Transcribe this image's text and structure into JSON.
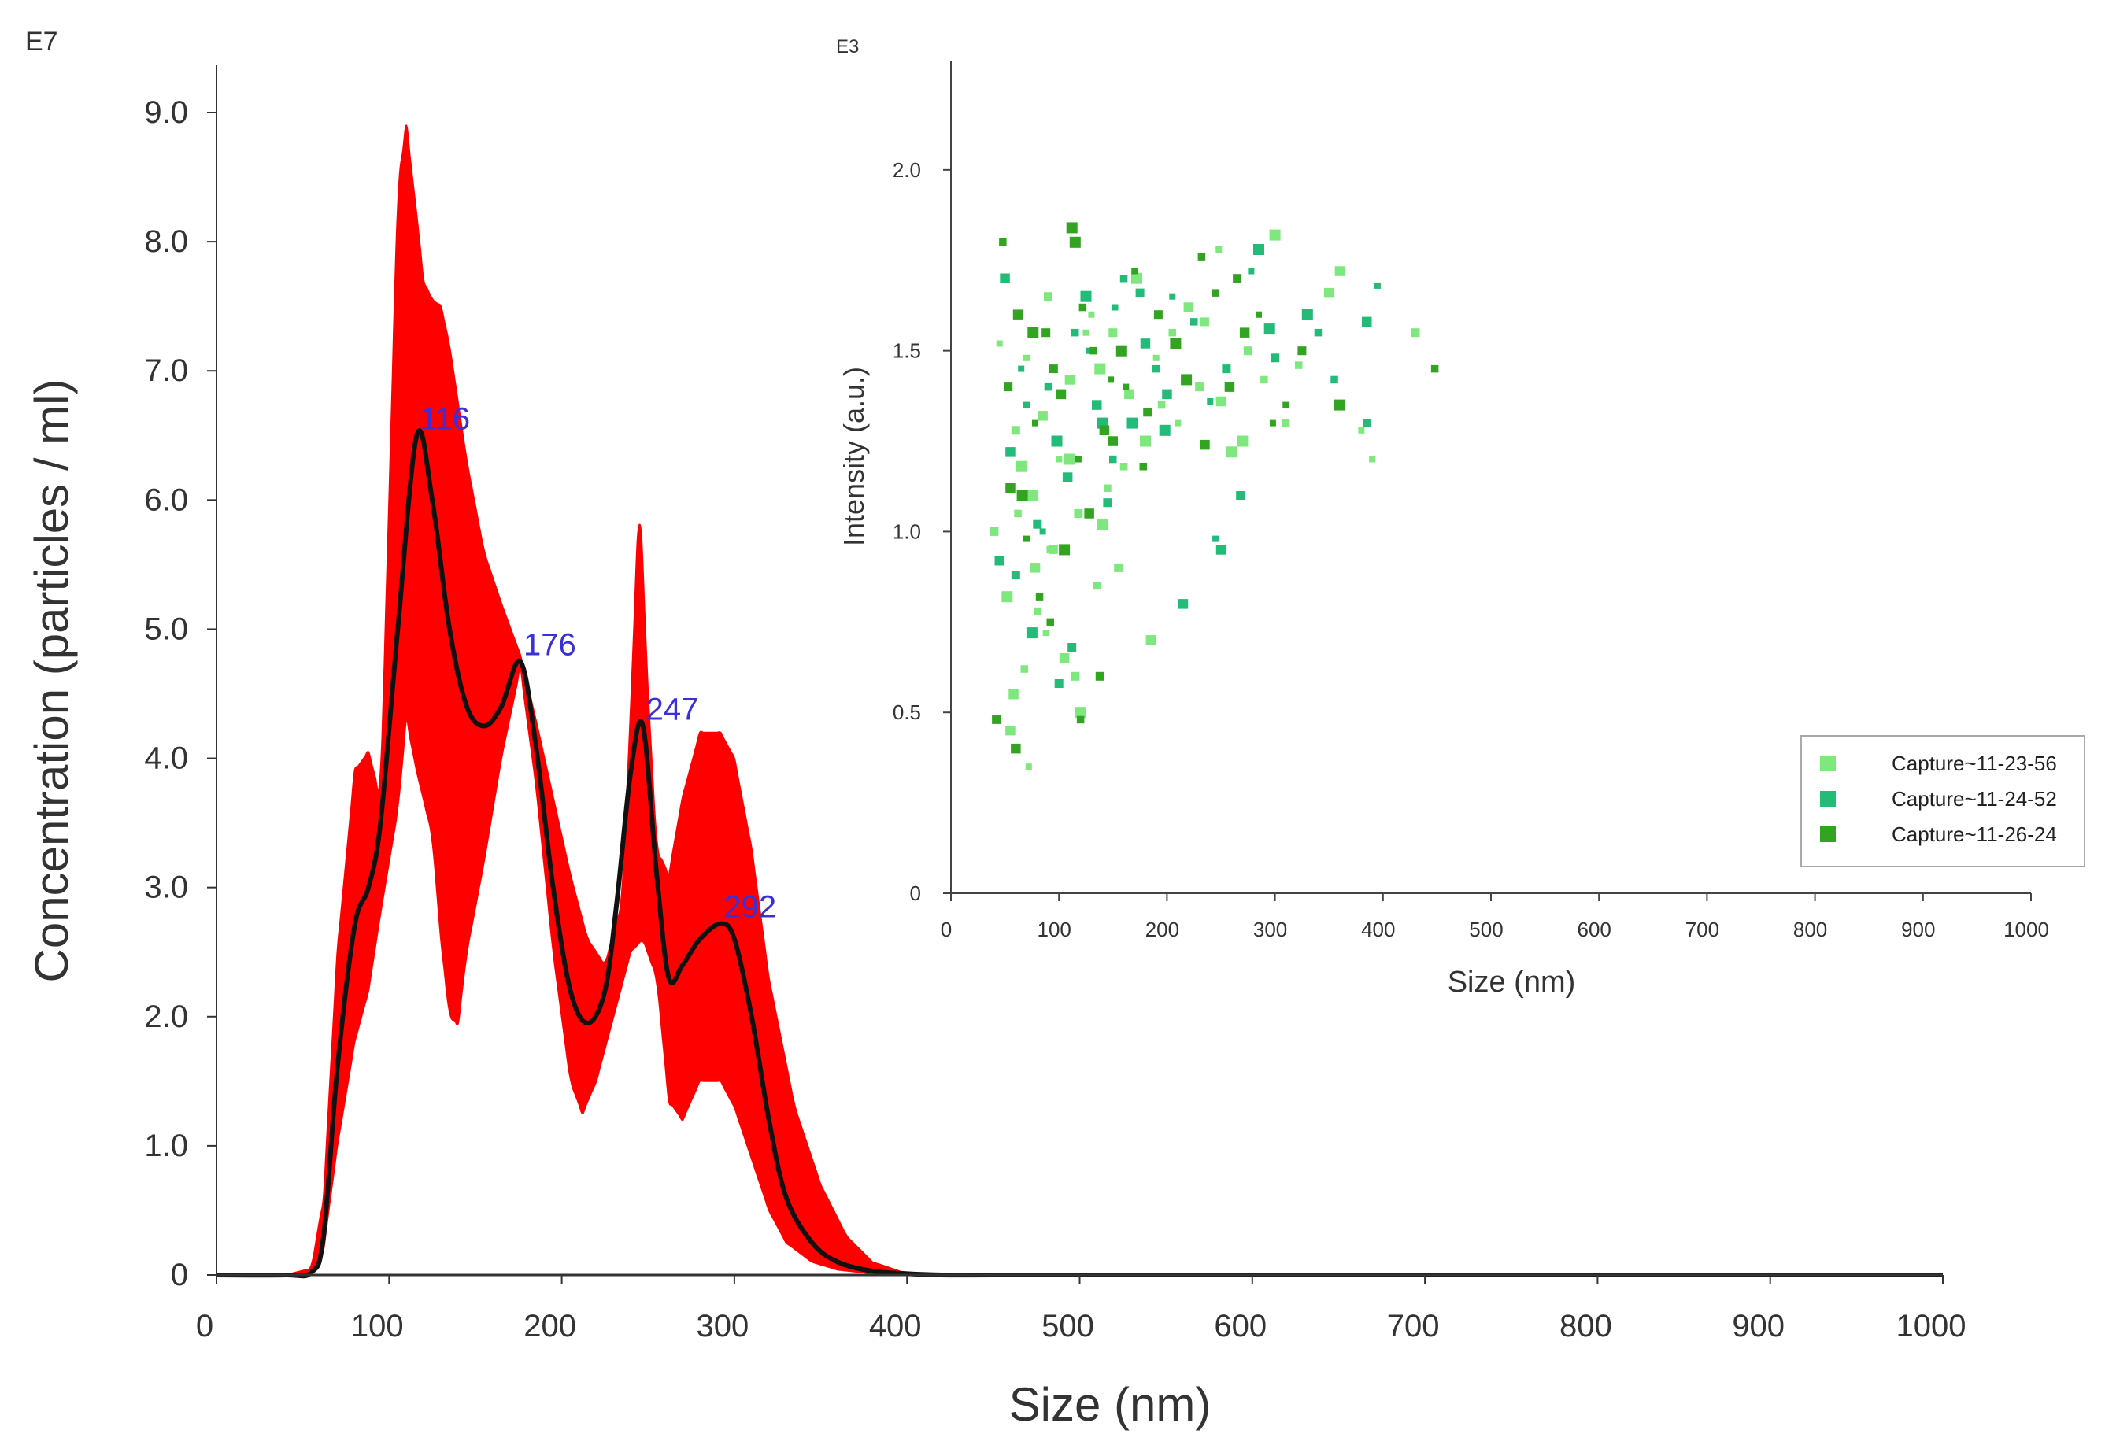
{
  "chart_data": [
    {
      "type": "area",
      "name": "main-distribution",
      "xlabel": "Size (nm)",
      "ylabel": "Concentration (particles / ml)",
      "y_exponent_label": "E7",
      "xlim": [
        0,
        1000
      ],
      "ylim": [
        0,
        9.0
      ],
      "x_ticks": [
        0,
        100,
        200,
        300,
        400,
        500,
        600,
        700,
        800,
        900,
        1000
      ],
      "x_tick_labels": [
        "0",
        "100",
        "200",
        "300",
        "400",
        "500",
        "600",
        "700",
        "800",
        "900",
        "1000"
      ],
      "y_ticks": [
        0,
        1,
        2,
        3,
        4,
        5,
        6,
        7,
        8,
        9
      ],
      "y_tick_labels": [
        "0",
        "1.0",
        "2.0",
        "3.0",
        "4.0",
        "5.0",
        "6.0",
        "7.0",
        "8.0",
        "9.0"
      ],
      "colors": {
        "band": "#ff0000",
        "mean_line": "#111111",
        "peak_label": "#3b2fd6",
        "axis": "#333333"
      },
      "series": [
        {
          "name": "mean",
          "x": [
            0,
            40,
            55,
            62,
            70,
            80,
            88,
            95,
            105,
            116,
            125,
            135,
            145,
            155,
            165,
            176,
            185,
            195,
            205,
            215,
            225,
            232,
            240,
            247,
            255,
            262,
            270,
            280,
            292,
            300,
            310,
            320,
            330,
            345,
            360,
            380,
            400,
            420,
            450,
            500,
            1000
          ],
          "values": [
            0,
            0,
            0.02,
            0.3,
            1.6,
            2.7,
            3.0,
            3.5,
            5.0,
            6.5,
            6.0,
            5.0,
            4.4,
            4.25,
            4.4,
            4.75,
            4.1,
            3.0,
            2.2,
            1.95,
            2.2,
            2.9,
            3.9,
            4.25,
            3.1,
            2.3,
            2.4,
            2.6,
            2.72,
            2.6,
            2.0,
            1.2,
            0.6,
            0.25,
            0.1,
            0.03,
            0.01,
            0,
            0,
            0,
            0
          ]
        },
        {
          "name": "upper",
          "x": [
            0,
            40,
            55,
            62,
            70,
            80,
            88,
            95,
            100,
            105,
            110,
            116,
            120,
            125,
            130,
            135,
            145,
            155,
            165,
            176,
            185,
            195,
            205,
            215,
            225,
            235,
            240,
            245,
            250,
            255,
            262,
            270,
            280,
            292,
            300,
            310,
            320,
            335,
            350,
            365,
            380,
            400,
            420,
            450,
            500,
            1000
          ],
          "values": [
            0,
            0,
            0.05,
            0.6,
            2.5,
            3.9,
            4.05,
            3.7,
            6.0,
            8.4,
            8.9,
            8.2,
            7.7,
            7.55,
            7.5,
            7.2,
            6.3,
            5.6,
            5.2,
            4.8,
            4.3,
            3.7,
            3.1,
            2.6,
            2.4,
            2.9,
            4.4,
            6.05,
            4.5,
            3.3,
            3.1,
            3.7,
            4.2,
            4.2,
            4.0,
            3.3,
            2.3,
            1.3,
            0.7,
            0.3,
            0.1,
            0.01,
            0,
            0,
            0,
            0
          ]
        },
        {
          "name": "lower",
          "x": [
            0,
            40,
            55,
            62,
            70,
            80,
            88,
            95,
            105,
            110,
            116,
            125,
            130,
            135,
            140,
            145,
            155,
            165,
            176,
            185,
            195,
            205,
            212,
            220,
            230,
            240,
            247,
            255,
            262,
            270,
            280,
            292,
            300,
            310,
            320,
            330,
            345,
            360,
            380,
            400,
            420,
            450,
            500,
            1000
          ],
          "values": [
            0,
            0,
            0.01,
            0.2,
            1.0,
            1.8,
            2.2,
            2.8,
            3.6,
            4.3,
            3.9,
            3.4,
            2.6,
            2.0,
            1.95,
            2.5,
            3.2,
            4.0,
            4.7,
            3.8,
            2.5,
            1.5,
            1.25,
            1.5,
            2.0,
            2.5,
            2.6,
            2.3,
            1.35,
            1.2,
            1.5,
            1.5,
            1.3,
            0.9,
            0.5,
            0.25,
            0.1,
            0.04,
            0.01,
            0,
            0,
            0,
            0,
            0
          ]
        }
      ],
      "peak_labels": [
        {
          "x": 116,
          "y": 6.5,
          "text": "116"
        },
        {
          "x": 176,
          "y": 4.75,
          "text": "176"
        },
        {
          "x": 247,
          "y": 4.25,
          "text": "247"
        },
        {
          "x": 292,
          "y": 2.72,
          "text": "292"
        }
      ]
    },
    {
      "type": "scatter",
      "name": "inset-scatter",
      "xlabel": "Size (nm)",
      "ylabel": "Intensity (a.u.)",
      "y_exponent_label": "E3",
      "xlim": [
        0,
        1000
      ],
      "ylim": [
        0,
        2.3
      ],
      "x_ticks": [
        0,
        100,
        200,
        300,
        400,
        500,
        600,
        700,
        800,
        900,
        1000
      ],
      "x_tick_labels": [
        "0",
        "100",
        "200",
        "300",
        "400",
        "500",
        "600",
        "700",
        "800",
        "900",
        "1000"
      ],
      "y_ticks": [
        0,
        0.5,
        1.0,
        1.5,
        2.0
      ],
      "y_tick_labels": [
        "0",
        "0.5",
        "1.0",
        "1.5",
        "2.0"
      ],
      "legend_position": "bottom-right",
      "series": [
        {
          "name": "Capture~11-23-56",
          "color": "#7ee87e",
          "x": [
            45,
            60,
            75,
            92,
            110,
            130,
            150,
            172,
            195,
            220,
            248,
            275,
            300,
            322,
            350,
            380,
            430,
            52,
            68,
            85,
            100,
            118,
            138,
            160,
            185,
            210,
            235,
            260,
            290,
            55,
            72,
            95,
            120,
            145,
            165,
            190,
            230,
            270,
            310,
            360,
            390,
            40,
            65,
            80,
            105,
            125,
            155,
            180,
            205,
            250,
            70,
            90,
            110,
            135,
            58,
            88,
            115,
            140,
            62,
            78
          ],
          "values": [
            1.52,
            1.28,
            1.1,
            0.95,
            1.42,
            1.6,
            1.55,
            1.7,
            1.35,
            1.62,
            1.78,
            1.5,
            1.82,
            1.46,
            1.66,
            1.28,
            1.55,
            0.82,
            0.62,
            1.32,
            1.2,
            1.05,
            1.45,
            1.18,
            0.7,
            1.3,
            1.58,
            1.22,
            1.42,
            0.45,
            0.35,
            0.95,
            0.5,
            1.12,
            1.38,
            1.48,
            1.4,
            1.25,
            1.3,
            1.72,
            1.2,
            1.0,
            1.18,
            0.78,
            0.65,
            1.55,
            0.9,
            1.25,
            1.55,
            1.36,
            1.48,
            1.65,
            1.2,
            0.85,
            0.55,
            0.72,
            0.6,
            1.02,
            1.05,
            0.9
          ]
        },
        {
          "name": "Capture~11-24-52",
          "color": "#22bb77",
          "x": [
            50,
            65,
            80,
            98,
            115,
            135,
            152,
            175,
            198,
            225,
            250,
            278,
            300,
            330,
            355,
            385,
            395,
            60,
            75,
            90,
            108,
            128,
            145,
            168,
            190,
            215,
            240,
            268,
            295,
            340,
            45,
            70,
            100,
            125,
            150,
            180,
            205,
            255,
            285,
            385,
            55,
            85,
            112,
            140,
            160,
            200,
            245
          ],
          "values": [
            1.7,
            1.45,
            1.02,
            1.25,
            1.55,
            1.35,
            1.62,
            1.66,
            1.28,
            1.58,
            0.95,
            1.72,
            1.48,
            1.6,
            1.42,
            1.58,
            1.68,
            0.88,
            0.72,
            1.4,
            1.15,
            1.5,
            1.08,
            1.3,
            1.45,
            0.8,
            1.36,
            1.1,
            1.56,
            1.55,
            0.92,
            1.35,
            0.58,
            1.65,
            1.2,
            1.52,
            1.65,
            1.45,
            1.78,
            1.3,
            1.22,
            1.0,
            0.68,
            1.3,
            1.7,
            1.38,
            0.98
          ]
        },
        {
          "name": "Capture~11-26-24",
          "color": "#33a322",
          "x": [
            48,
            62,
            78,
            95,
            112,
            132,
            150,
            170,
            192,
            218,
            245,
            272,
            298,
            325,
            360,
            448,
            55,
            70,
            88,
            105,
            122,
            142,
            162,
            182,
            208,
            232,
            258,
            285,
            42,
            66,
            82,
            102,
            118,
            138,
            158,
            178,
            235,
            310,
            53,
            76,
            92,
            128,
            148,
            265,
            115,
            120,
            60
          ],
          "values": [
            1.8,
            1.6,
            1.3,
            1.45,
            1.84,
            1.5,
            1.25,
            1.72,
            1.6,
            1.42,
            1.66,
            1.55,
            1.3,
            1.5,
            1.35,
            1.45,
            1.12,
            0.98,
            1.55,
            0.95,
            1.62,
            1.28,
            1.4,
            1.33,
            1.52,
            1.76,
            1.4,
            1.6,
            0.48,
            1.1,
            0.82,
            1.38,
            1.2,
            0.6,
            1.5,
            1.18,
            1.24,
            1.35,
            1.4,
            1.55,
            0.75,
            1.05,
            1.42,
            1.7,
            1.8,
            0.48,
            0.4
          ]
        }
      ]
    }
  ]
}
